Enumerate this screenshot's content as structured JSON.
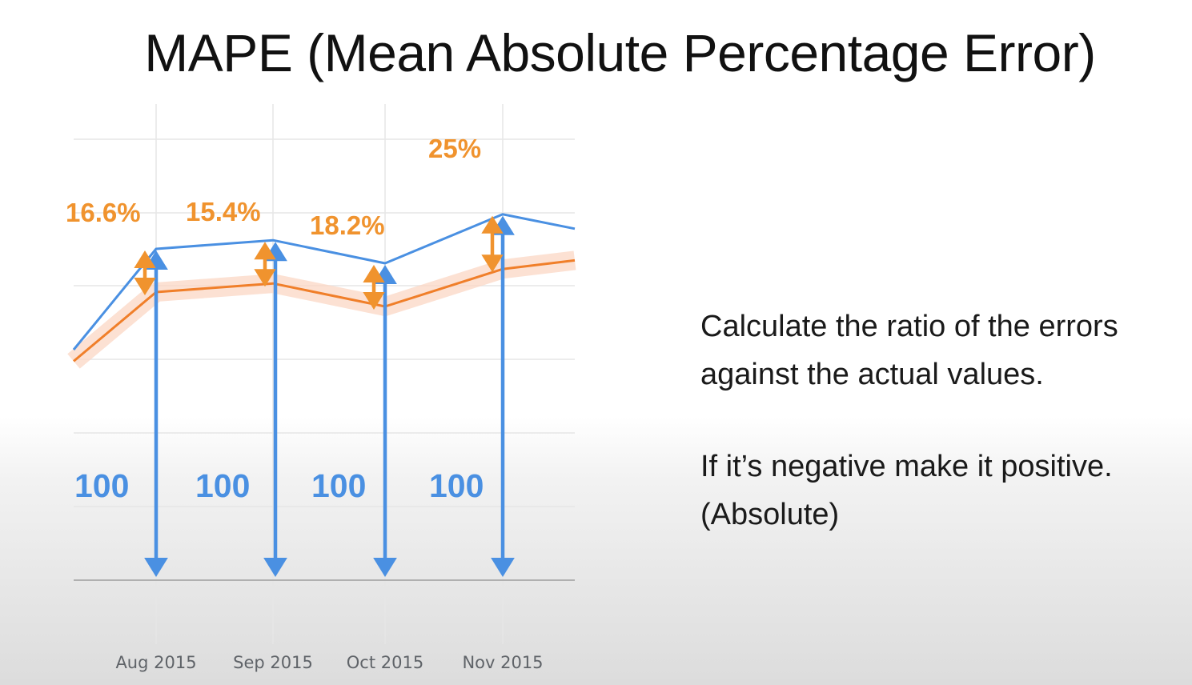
{
  "title": "MAPE (Mean Absolute Percentage Error)",
  "text": {
    "note_1": [
      "Calculate the ratio of the errors",
      "against the actual values."
    ],
    "note_2": [
      "If it’s negative make it positive.",
      "(Absolute)"
    ]
  },
  "colors": {
    "actual": "#4a90e2",
    "forecast": "#f07f2a",
    "confidence_band": "#fbd7c4",
    "error_arrow": "#f0932e",
    "grid": "#e6e6e6"
  },
  "chart_data": {
    "type": "line",
    "categories": [
      "Aug 2015",
      "Sep 2015",
      "Oct 2015",
      "Nov 2015"
    ],
    "ylim": [
      0,
      140
    ],
    "grid": true,
    "series": [
      {
        "role": "actual",
        "values": [
          115,
          118,
          110,
          127
        ],
        "start_value": 80,
        "end_value": 122
      },
      {
        "role": "forecast",
        "values": [
          100,
          103,
          95,
          108
        ],
        "start_value": 76,
        "end_value": 111
      }
    ],
    "actual_labels": [
      "100",
      "100",
      "100",
      "100"
    ],
    "error_labels": [
      "16.6%",
      "15.4%",
      "18.2%",
      "25%"
    ]
  }
}
